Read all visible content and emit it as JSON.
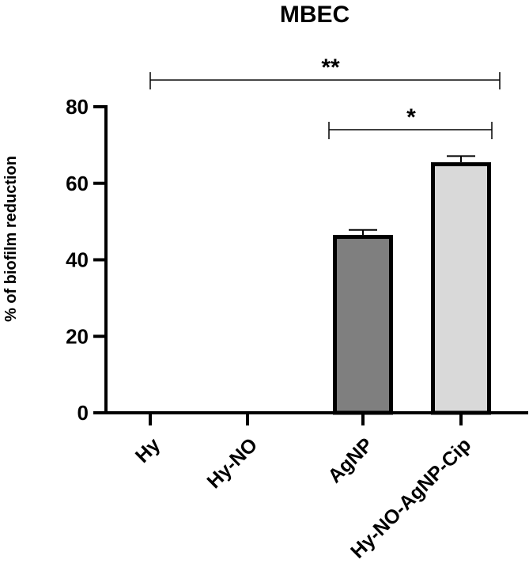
{
  "chart_data": {
    "type": "bar",
    "title": "MBEC",
    "xlabel": "",
    "ylabel": "% of biofilm reduction",
    "ylim": [
      0,
      80
    ],
    "yticks": [
      0,
      20,
      40,
      60,
      80
    ],
    "categories": [
      "Hy",
      "Hy-NO",
      "AgNP",
      "Hy-NO-AgNP-Cip"
    ],
    "values": [
      0,
      0,
      46.5,
      65.5
    ],
    "errors": [
      0,
      0,
      1.3,
      1.6
    ],
    "bar_colors": [
      "#7f7f7f",
      "#7f7f7f",
      "#7f7f7f",
      "#d9d9d9"
    ],
    "bar_edge_color": "#000000",
    "grid": false,
    "legend": "none",
    "significance": [
      {
        "from": 0,
        "to": 3,
        "label": "**",
        "y": 87
      },
      {
        "from": 2,
        "to": 3,
        "label": "*",
        "y": 74
      }
    ]
  }
}
